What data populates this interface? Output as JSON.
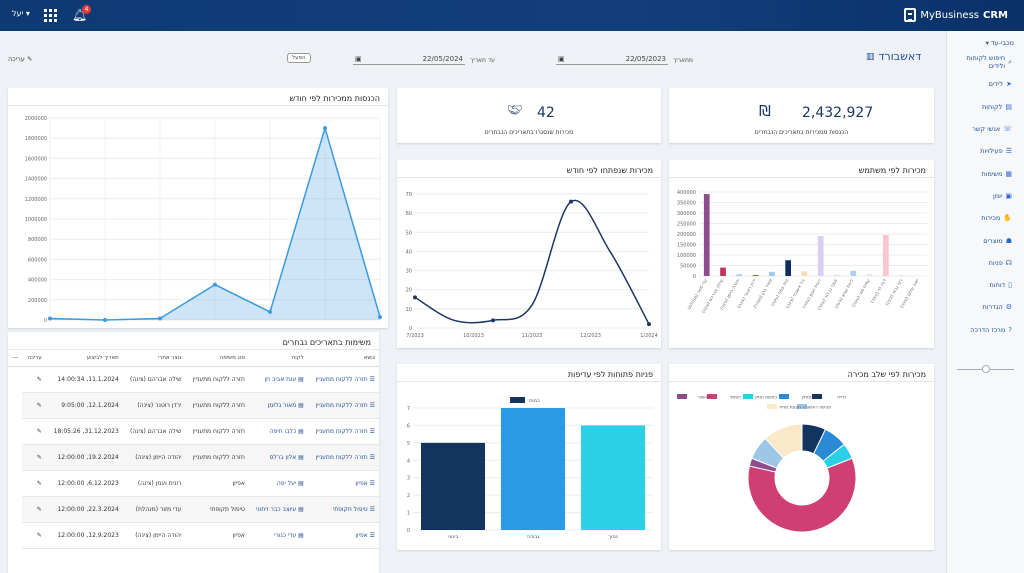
{
  "header": {
    "brand": "MyBusiness",
    "brand_bold": "CRM",
    "user": "יעל ▾",
    "notifications": "4"
  },
  "sidebar": {
    "selected": "מכבי-עד ▾",
    "items": [
      {
        "label": "חיפוש לקוחות ולידים",
        "icon": "search-icon",
        "ic": "⌕"
      },
      {
        "label": "לידים",
        "icon": "lead-icon",
        "ic": "➤"
      },
      {
        "label": "לקוחות",
        "icon": "customers-icon",
        "ic": "▤"
      },
      {
        "label": "אנשי קשר",
        "icon": "contacts-icon",
        "ic": "☏"
      },
      {
        "label": "פעילויות",
        "icon": "activities-icon",
        "ic": "☰"
      },
      {
        "label": "משימות",
        "icon": "tasks-icon",
        "ic": "▦"
      },
      {
        "label": "יומן",
        "icon": "calendar-icon",
        "ic": "▣"
      },
      {
        "label": "מכירות",
        "icon": "handshake-icon",
        "ic": "✋"
      },
      {
        "label": "מוצרים",
        "icon": "products-icon",
        "ic": "☗"
      },
      {
        "label": "פניות",
        "icon": "tickets-icon",
        "ic": "☊"
      },
      {
        "label": "דוחות",
        "icon": "reports-icon",
        "ic": "▯"
      },
      {
        "label": "הגדרות",
        "icon": "settings-icon",
        "ic": "⚙"
      },
      {
        "label": "מרכז הדרכה",
        "icon": "help-icon",
        "ic": "?"
      }
    ]
  },
  "page": {
    "title": "דאשבורד",
    "from_label": "מתאריך",
    "from_date": "22/05/2023",
    "to_label": "עד תאריך",
    "to_date": "22/05/2024",
    "filter": "הפעל",
    "edit": "עריכה"
  },
  "stats": [
    {
      "value": "2,432,927",
      "label": "הכנסות ממכירות בתאריכים הנבחרים"
    },
    {
      "value": "42",
      "label": "מכירות שנסגרו בתאריכים הנבחרים"
    }
  ],
  "titles": {
    "revenue": "הכנסות ממכירות לפי חודש",
    "opened": "מכירות שנפתחו לפי חודש",
    "by_user": "מכירות לפי משתמש",
    "tasks": "משימות בתאריכים נבחרים",
    "priority": "פניות פתוחות לפי עדיפות",
    "stage": "מכירות לפי שלב מכירה"
  },
  "tasks": {
    "headers": [
      "נושא",
      "לקוח",
      "סוג משימה",
      "נוצר אחרי",
      "תאריך לביצוע",
      "עריכה"
    ],
    "rows": [
      [
        "חזרה ללקוח מתעניין",
        "ענת אביב חן",
        "חזרה ללקוח מתעניין",
        "שילה אברהם (צינה)",
        "11.1.2024, 14:00:34"
      ],
      [
        "חזרה ללקוח מתעניין",
        "מאור גלזמן",
        "חזרה ללקוח מתעניין",
        "ירדן רוטנר (צינה)",
        "12.1.2024, 9:05:00"
      ],
      [
        "חזרה ללקוח מתעניין",
        "כלבו חיפה",
        "חזרה ללקוח מתעניין",
        "שילה אברהם (צינה)",
        "31.12.2023, 18:05:26"
      ],
      [
        "חזרה ללקוח מתעניין",
        "אלון ברלס",
        "חזרה ללקוח מתעניין",
        "יהודה היימן (צינה)",
        "19.2.2024, 12:00:00"
      ],
      [
        "אפיון",
        "יעל יפה",
        "אפיון",
        "רונית ויגמן (צינה)",
        "6.12.2023, 12:00:00"
      ],
      [
        "טיפול תקופתי",
        "עיוצב כבר זיתוני",
        "טיפול תקופתי",
        "עדי מזור (מנהלת)",
        "22.3.2024, 12:00:00"
      ],
      [
        "אפיון",
        "עדי כנורי",
        "אפיון",
        "יהודה היימן (צינה)",
        "12.9.2023, 12:00:00"
      ]
    ]
  },
  "chart_data": [
    {
      "type": "area",
      "title": "הכנסות ממכירות לפי חודש",
      "ylim": [
        0,
        2000000
      ],
      "yticks": [
        "2000000",
        "1800000",
        "1600000",
        "1400000",
        "1200000",
        "1000000",
        "800000",
        "600000",
        "400000",
        "200000",
        "0"
      ],
      "values": [
        15000,
        0,
        15000,
        350000,
        80000,
        1900000,
        30000
      ]
    },
    {
      "type": "line",
      "title": "מכירות שנפתחו לפי חודש",
      "ylim": [
        0,
        70
      ],
      "yticks": [
        "70",
        "60",
        "50",
        "40",
        "30",
        "20",
        "10",
        "0"
      ],
      "categories": [
        "7/2023",
        "10/2023",
        "11/2023",
        "12/2023",
        "1/2024"
      ],
      "x": [
        0,
        1,
        2,
        3,
        4,
        5,
        6
      ],
      "values": [
        16,
        4,
        4,
        12,
        66,
        40,
        2
      ]
    },
    {
      "type": "bar",
      "title": "מכירות לפי משתמש",
      "ylim": [
        0,
        400000
      ],
      "yticks": [
        "400000",
        "350000",
        "300000",
        "250000",
        "200000",
        "150000",
        "100000",
        "50000",
        "0"
      ],
      "categories": [
        "עדי מזור (מנהלת)",
        "שילה אברהם (צינה)",
        "יהודה היימן (צינה)",
        "ירדן רוטנר (צינה)",
        "מאיר כהן (מנהל)",
        "נויה צמח (צינה)",
        "גיל אשכנזי (צינה)",
        "רונית ויגמן (צינה)",
        "אסף בן דוד (צינה)",
        "ליאת שגיא (צינה)",
        "עמית מור (צינה)",
        "דנה לוי (צינה)",
        "רוני גבאי (צינה)",
        "יואב שלום (צינה)"
      ],
      "values": [
        390000,
        40000,
        8000,
        5000,
        20000,
        75000,
        22000,
        190000,
        5000,
        25000,
        10000,
        195000,
        5000,
        3000
      ],
      "colors": [
        "#8e4d8f",
        "#c2345e",
        "#9ec9ea",
        "#2a8ad6",
        "#9ec9ea",
        "#0e2f5e",
        "#f5ddb2",
        "#d9cdf2",
        "#c8e4f5",
        "#a8d3ef",
        "#e7e7e7",
        "#f7c6cf",
        "#dce8f6",
        "#eeeeee"
      ]
    },
    {
      "type": "bar",
      "title": "פניות פתוחות לפי עדיפות",
      "ylim": [
        0,
        7
      ],
      "yticks": [
        "7",
        "6",
        "5",
        "4",
        "3",
        "2",
        "1",
        "0"
      ],
      "categories": [
        "בינוני",
        "גבוהה",
        "נמוך"
      ],
      "values": [
        5,
        7,
        6
      ],
      "colors": [
        "#12345e",
        "#2a9ae6",
        "#2bd0e8"
      ],
      "legend": "כמות"
    },
    {
      "type": "pie",
      "title": "מכירות לפי שלב מכירה",
      "labels": [
        "זכייה",
        "ממתין",
        "במשא ומתן",
        "הפסד",
        "ראשוני",
        "פגישה ראשונה",
        "הצעת מחיר"
      ],
      "values": [
        3,
        3,
        2,
        25,
        1,
        3,
        5
      ],
      "colors": [
        "#12345e",
        "#2a8ad6",
        "#2bd0e8",
        "#cf3f73",
        "#8e4d8f",
        "#9cc7e6",
        "#fbe8c8"
      ]
    }
  ]
}
